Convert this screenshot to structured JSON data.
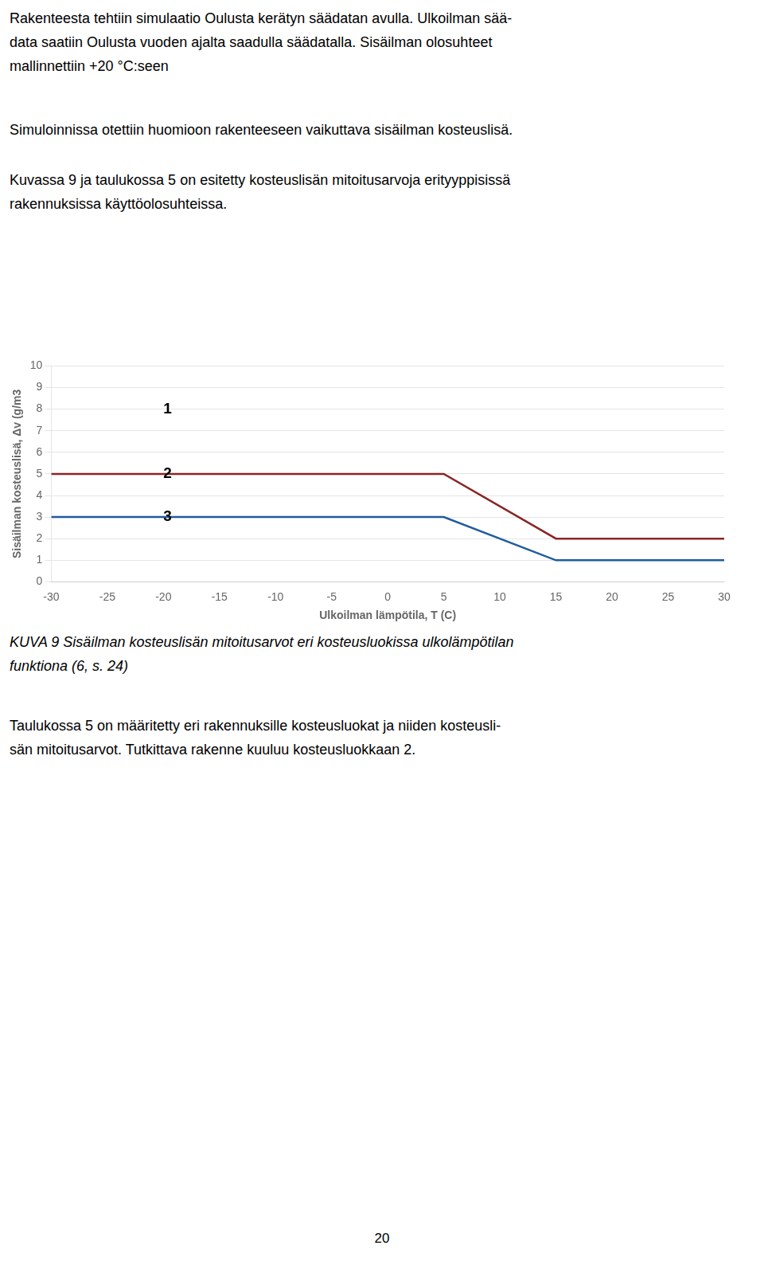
{
  "chart_data": {
    "type": "line",
    "xlabel": "Ulkoilman lämpötila, T (C)",
    "ylabel": "Sisäilman kosteuslisä, Δv (g/m3",
    "x": [
      -30,
      5,
      15,
      30
    ],
    "series": [
      {
        "color": "#8B2525",
        "values": [
          5,
          5,
          2,
          2
        ]
      },
      {
        "color": "#1F5C9E",
        "values": [
          3,
          3,
          1,
          1
        ]
      }
    ],
    "annotations": [
      {
        "text": "1",
        "x": -20,
        "y": 8
      },
      {
        "text": "2",
        "x": -20,
        "y": 5
      },
      {
        "text": "3",
        "x": -20,
        "y": 3
      }
    ],
    "xlim": [
      -30,
      30
    ],
    "xticks": [
      -30,
      -25,
      -20,
      -15,
      -10,
      -5,
      0,
      5,
      10,
      15,
      20,
      25,
      30
    ],
    "ylim": [
      0,
      10
    ],
    "yticks": [
      0,
      1,
      2,
      3,
      4,
      5,
      6,
      7,
      8,
      9,
      10
    ],
    "grid": "y"
  },
  "text_before": [
    [
      "Rakenteesta tehtiin simulaatio Oulusta kerätyn säädatan avulla. Ulkoilman sää-",
      "data saatiin Oulusta vuoden ajalta saadulla säädatalla. Sisäilman olosuhteet",
      "mallinnettiin +20 °C:seen"
    ],
    [
      "Simuloinnissa otettiin huomioon rakenteeseen vaikuttava sisäilman kosteuslisä."
    ],
    [
      "Kuvassa 9 ja taulukossa 5 on esitetty kosteuslisän mitoitusarvoja erityyppisissä",
      "rakennuksissa käyttöolosuhteissa."
    ]
  ],
  "caption": [
    "KUVA 9 Sisäilman kosteuslisän mitoitusarvot eri kosteusluokissa ulkolämpötilan",
    "funktiona (6, s. 24)"
  ],
  "text_after": [
    [
      "Taulukossa 5 on määritetty eri rakennuksille kosteusluokat ja niiden kosteusli-",
      "sän mitoitusarvot. Tutkittava rakenne kuuluu kosteusluokkaan 2."
    ]
  ],
  "page_number": "20"
}
